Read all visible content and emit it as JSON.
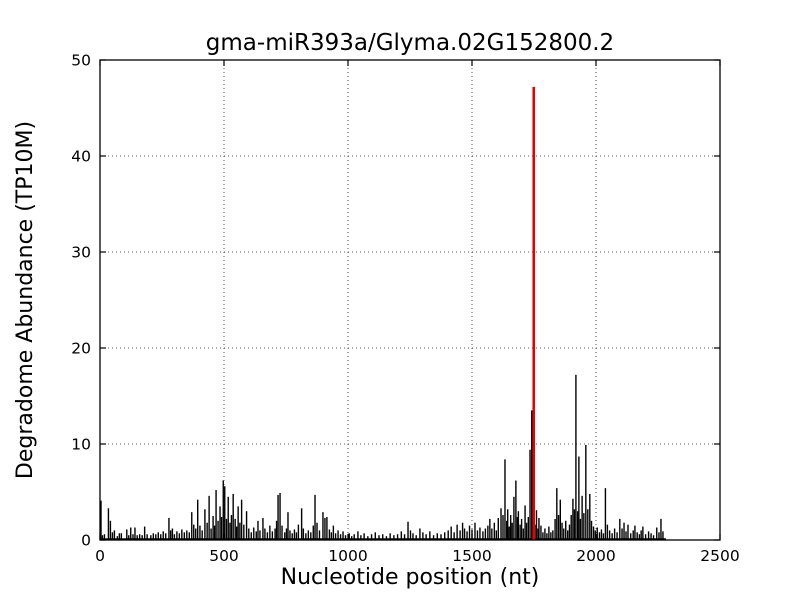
{
  "figure": {
    "title": "gma-miR393a/Glyma.02G152800.2",
    "xlabel": "Nucleotide position (nt)",
    "ylabel": "Degradome Abundance (TP10M)"
  },
  "chart_data": {
    "type": "bar",
    "subtype": "vlines-degradome",
    "title": "gma-miR393a/Glyma.02G152800.2",
    "xlabel": "Nucleotide position (nt)",
    "ylabel": "Degradome Abundance (TP10M)",
    "xlim": [
      0,
      2500
    ],
    "ylim": [
      0,
      50
    ],
    "x_ticks": [
      0,
      500,
      1000,
      1500,
      2000,
      2500
    ],
    "y_ticks": [
      0,
      10,
      20,
      30,
      40,
      50
    ],
    "grid": "dotted",
    "legend": "none",
    "bar_color": "#000000",
    "highlight_color": "#e60000",
    "highlight_point": {
      "x": 1749,
      "value": 47.2
    },
    "noise_floor": {
      "x_start": 2,
      "x_end": 2282,
      "value": 0.18
    },
    "points": [
      [
        4,
        4.1
      ],
      [
        10,
        0.5
      ],
      [
        18,
        0.6
      ],
      [
        34,
        3.3
      ],
      [
        42,
        2.0
      ],
      [
        50,
        0.8
      ],
      [
        58,
        1.0
      ],
      [
        70,
        0.4
      ],
      [
        78,
        0.7
      ],
      [
        86,
        0.7
      ],
      [
        108,
        1.1
      ],
      [
        116,
        0.5
      ],
      [
        124,
        1.3
      ],
      [
        133,
        0.6
      ],
      [
        141,
        1.3
      ],
      [
        150,
        0.5
      ],
      [
        160,
        0.6
      ],
      [
        170,
        0.5
      ],
      [
        180,
        1.4
      ],
      [
        190,
        0.6
      ],
      [
        205,
        0.5
      ],
      [
        215,
        0.7
      ],
      [
        225,
        0.6
      ],
      [
        235,
        0.8
      ],
      [
        245,
        0.6
      ],
      [
        255,
        0.9
      ],
      [
        265,
        0.7
      ],
      [
        278,
        2.3
      ],
      [
        285,
        1.0
      ],
      [
        292,
        1.2
      ],
      [
        300,
        0.6
      ],
      [
        310,
        0.9
      ],
      [
        320,
        0.7
      ],
      [
        330,
        1.1
      ],
      [
        340,
        0.8
      ],
      [
        350,
        1.0
      ],
      [
        360,
        0.8
      ],
      [
        370,
        2.9
      ],
      [
        378,
        1.6
      ],
      [
        386,
        1.2
      ],
      [
        394,
        4.2
      ],
      [
        403,
        1.5
      ],
      [
        412,
        1.0
      ],
      [
        423,
        3.2
      ],
      [
        432,
        1.8
      ],
      [
        440,
        4.6
      ],
      [
        448,
        1.2
      ],
      [
        456,
        2.5
      ],
      [
        462,
        1.5
      ],
      [
        468,
        5.2
      ],
      [
        476,
        2.0
      ],
      [
        484,
        3.5
      ],
      [
        490,
        2.4
      ],
      [
        497,
        6.2
      ],
      [
        503,
        5.6
      ],
      [
        510,
        2.2
      ],
      [
        517,
        4.5
      ],
      [
        524,
        1.8
      ],
      [
        530,
        2.6
      ],
      [
        537,
        4.8
      ],
      [
        545,
        2.2
      ],
      [
        551,
        1.4
      ],
      [
        557,
        3.5
      ],
      [
        564,
        1.8
      ],
      [
        571,
        4.2
      ],
      [
        580,
        1.6
      ],
      [
        591,
        3.0
      ],
      [
        600,
        1.2
      ],
      [
        610,
        0.8
      ],
      [
        620,
        1.3
      ],
      [
        630,
        0.9
      ],
      [
        637,
        2.0
      ],
      [
        645,
        1.0
      ],
      [
        657,
        2.3
      ],
      [
        665,
        1.2
      ],
      [
        675,
        0.8
      ],
      [
        685,
        1.5
      ],
      [
        695,
        0.9
      ],
      [
        706,
        1.2
      ],
      [
        712,
        2.0
      ],
      [
        718,
        4.7
      ],
      [
        726,
        4.9
      ],
      [
        734,
        1.5
      ],
      [
        745,
        0.8
      ],
      [
        752,
        1.2
      ],
      [
        758,
        2.9
      ],
      [
        766,
        1.0
      ],
      [
        775,
        0.7
      ],
      [
        784,
        1.1
      ],
      [
        792,
        0.8
      ],
      [
        800,
        1.6
      ],
      [
        813,
        3.3
      ],
      [
        820,
        1.2
      ],
      [
        830,
        0.7
      ],
      [
        840,
        1.0
      ],
      [
        850,
        0.8
      ],
      [
        860,
        1.5
      ],
      [
        867,
        4.7
      ],
      [
        875,
        1.8
      ],
      [
        885,
        1.0
      ],
      [
        899,
        2.9
      ],
      [
        907,
        2.3
      ],
      [
        915,
        2.4
      ],
      [
        925,
        1.1
      ],
      [
        933,
        0.8
      ],
      [
        941,
        1.5
      ],
      [
        950,
        0.7
      ],
      [
        960,
        1.0
      ],
      [
        970,
        0.6
      ],
      [
        980,
        0.9
      ],
      [
        990,
        0.5
      ],
      [
        1005,
        0.7
      ],
      [
        1015,
        0.4
      ],
      [
        1025,
        0.6
      ],
      [
        1040,
        0.9
      ],
      [
        1052,
        0.5
      ],
      [
        1065,
        0.7
      ],
      [
        1080,
        0.4
      ],
      [
        1095,
        0.6
      ],
      [
        1110,
        0.8
      ],
      [
        1125,
        0.5
      ],
      [
        1140,
        0.6
      ],
      [
        1155,
        0.4
      ],
      [
        1170,
        0.7
      ],
      [
        1185,
        0.5
      ],
      [
        1200,
        0.6
      ],
      [
        1215,
        0.9
      ],
      [
        1228,
        0.6
      ],
      [
        1242,
        1.9
      ],
      [
        1252,
        1.0
      ],
      [
        1262,
        0.7
      ],
      [
        1275,
        0.5
      ],
      [
        1290,
        1.2
      ],
      [
        1302,
        0.8
      ],
      [
        1315,
        0.6
      ],
      [
        1330,
        0.9
      ],
      [
        1345,
        0.5
      ],
      [
        1360,
        0.7
      ],
      [
        1375,
        0.6
      ],
      [
        1390,
        0.8
      ],
      [
        1404,
        1.0
      ],
      [
        1416,
        1.4
      ],
      [
        1428,
        0.8
      ],
      [
        1440,
        1.6
      ],
      [
        1452,
        1.0
      ],
      [
        1462,
        1.8
      ],
      [
        1470,
        1.2
      ],
      [
        1480,
        0.9
      ],
      [
        1490,
        1.5
      ],
      [
        1500,
        1.1
      ],
      [
        1512,
        1.8
      ],
      [
        1522,
        1.0
      ],
      [
        1532,
        1.3
      ],
      [
        1544,
        0.9
      ],
      [
        1554,
        1.2
      ],
      [
        1564,
        1.5
      ],
      [
        1572,
        2.2
      ],
      [
        1580,
        1.2
      ],
      [
        1590,
        1.8
      ],
      [
        1598,
        1.0
      ],
      [
        1606,
        2.3
      ],
      [
        1617,
        3.3
      ],
      [
        1625,
        2.6
      ],
      [
        1633,
        8.4
      ],
      [
        1640,
        2.0
      ],
      [
        1644,
        3.2
      ],
      [
        1650,
        1.4
      ],
      [
        1656,
        2.6
      ],
      [
        1662,
        1.8
      ],
      [
        1669,
        4.5
      ],
      [
        1677,
        6.2
      ],
      [
        1683,
        2.4
      ],
      [
        1687,
        3.0
      ],
      [
        1694,
        1.6
      ],
      [
        1700,
        2.2
      ],
      [
        1707,
        1.2
      ],
      [
        1714,
        3.6
      ],
      [
        1720,
        1.8
      ],
      [
        1727,
        2.4
      ],
      [
        1734,
        9.4
      ],
      [
        1741,
        13.5
      ],
      [
        1746,
        2.0
      ],
      [
        1754,
        1.6
      ],
      [
        1760,
        3.1
      ],
      [
        1766,
        1.2
      ],
      [
        1770,
        2.3
      ],
      [
        1778,
        1.5
      ],
      [
        1786,
        0.8
      ],
      [
        1794,
        1.2
      ],
      [
        1802,
        0.7
      ],
      [
        1810,
        1.4
      ],
      [
        1818,
        0.8
      ],
      [
        1826,
        1.0
      ],
      [
        1835,
        2.2
      ],
      [
        1842,
        5.4
      ],
      [
        1849,
        2.6
      ],
      [
        1856,
        4.2
      ],
      [
        1863,
        1.8
      ],
      [
        1870,
        1.2
      ],
      [
        1878,
        2.0
      ],
      [
        1886,
        1.0
      ],
      [
        1893,
        1.6
      ],
      [
        1900,
        2.6
      ],
      [
        1907,
        4.3
      ],
      [
        1913,
        3.2
      ],
      [
        1919,
        17.2
      ],
      [
        1926,
        3.0
      ],
      [
        1931,
        8.7
      ],
      [
        1937,
        2.2
      ],
      [
        1944,
        4.6
      ],
      [
        1951,
        2.8
      ],
      [
        1959,
        9.9
      ],
      [
        1967,
        3.2
      ],
      [
        1975,
        4.8
      ],
      [
        1982,
        2.0
      ],
      [
        1990,
        1.4
      ],
      [
        1997,
        1.0
      ],
      [
        2005,
        1.3
      ],
      [
        2014,
        0.8
      ],
      [
        2022,
        1.1
      ],
      [
        2030,
        0.7
      ],
      [
        2038,
        5.4
      ],
      [
        2046,
        1.6
      ],
      [
        2055,
        1.0
      ],
      [
        2065,
        0.7
      ],
      [
        2075,
        1.2
      ],
      [
        2085,
        0.8
      ],
      [
        2096,
        2.2
      ],
      [
        2105,
        1.2
      ],
      [
        2113,
        1.8
      ],
      [
        2121,
        0.9
      ],
      [
        2129,
        1.6
      ],
      [
        2140,
        0.7
      ],
      [
        2150,
        1.0
      ],
      [
        2157,
        1.5
      ],
      [
        2166,
        0.8
      ],
      [
        2175,
        0.6
      ],
      [
        2182,
        1.0
      ],
      [
        2189,
        1.4
      ],
      [
        2200,
        0.6
      ],
      [
        2212,
        0.9
      ],
      [
        2222,
        0.7
      ],
      [
        2232,
        0.5
      ],
      [
        2245,
        1.3
      ],
      [
        2254,
        0.8
      ],
      [
        2262,
        2.2
      ],
      [
        2270,
        0.9
      ]
    ]
  }
}
